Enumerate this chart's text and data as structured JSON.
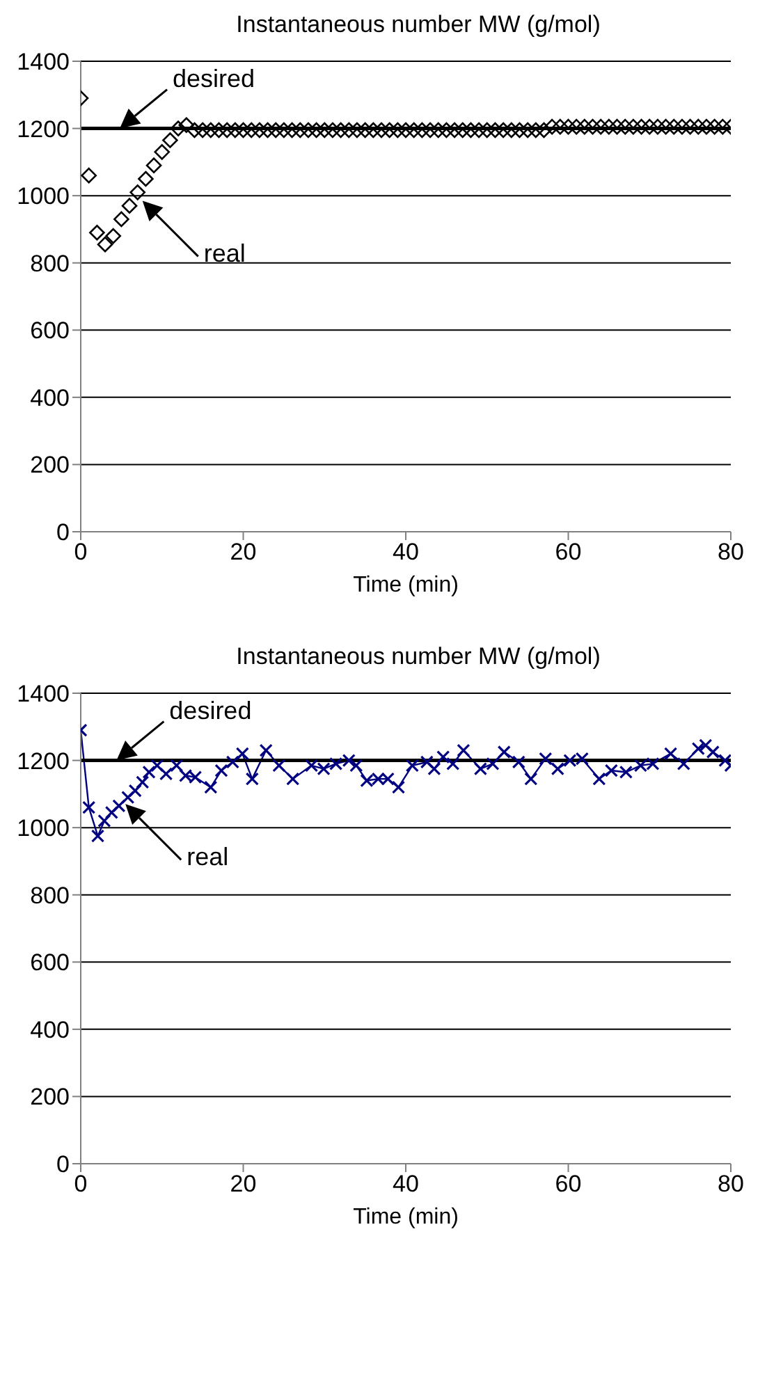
{
  "chart_data": [
    {
      "type": "scatter",
      "title": "Instantaneous number MW (g/mol)",
      "xlabel": "Time (min)",
      "xlim": [
        0,
        80
      ],
      "xticks": [
        0,
        20,
        40,
        60,
        80
      ],
      "ylim": [
        0,
        1400
      ],
      "yticks": [
        0,
        200,
        400,
        600,
        800,
        1000,
        1200,
        1400
      ],
      "grid": "y",
      "annotations": [
        {
          "text": "desired",
          "x": 4.8,
          "y": 1200
        },
        {
          "text": "real",
          "x": 7.6,
          "y": 985
        }
      ],
      "series": [
        {
          "color": "#000000",
          "marker": "diamond",
          "x": [
            0,
            1,
            2,
            3,
            4,
            5,
            6,
            7,
            8,
            9,
            10,
            11,
            12,
            13,
            14,
            15,
            16,
            17,
            18,
            19,
            20,
            21,
            22,
            23,
            24,
            25,
            26,
            27,
            28,
            29,
            30,
            31,
            32,
            33,
            34,
            35,
            36,
            37,
            38,
            39,
            40,
            41,
            42,
            43,
            44,
            45,
            46,
            47,
            48,
            49,
            50,
            51,
            52,
            53,
            54,
            55,
            56,
            57,
            58,
            59,
            60,
            61,
            62,
            63,
            64,
            65,
            66,
            67,
            68,
            69,
            70,
            71,
            72,
            73,
            74,
            75,
            76,
            77,
            78,
            79,
            80
          ],
          "values": [
            1290,
            1060,
            890,
            855,
            880,
            930,
            970,
            1010,
            1050,
            1090,
            1130,
            1165,
            1200,
            1210,
            1195,
            1195,
            1195,
            1195,
            1195,
            1195,
            1195,
            1195,
            1195,
            1195,
            1195,
            1195,
            1195,
            1195,
            1195,
            1195,
            1195,
            1195,
            1195,
            1195,
            1195,
            1195,
            1195,
            1195,
            1195,
            1195,
            1195,
            1195,
            1195,
            1195,
            1195,
            1195,
            1195,
            1195,
            1195,
            1195,
            1195,
            1195,
            1195,
            1195,
            1195,
            1195,
            1195,
            1195,
            1205,
            1205,
            1205,
            1205,
            1205,
            1205,
            1205,
            1205,
            1205,
            1205,
            1205,
            1205,
            1205,
            1205,
            1205,
            1205,
            1205,
            1205,
            1205,
            1205,
            1205,
            1205,
            1205
          ]
        },
        {
          "type": "line",
          "color": "#000000",
          "marker": "none",
          "x": [
            0,
            80
          ],
          "values": [
            1200,
            1200
          ]
        }
      ]
    },
    {
      "type": "line",
      "title": "Instantaneous number MW (g/mol)",
      "xlabel": "Time (min)",
      "xlim": [
        0,
        80
      ],
      "xticks": [
        0,
        20,
        40,
        60,
        80
      ],
      "ylim": [
        0,
        1400
      ],
      "yticks": [
        0,
        200,
        400,
        600,
        800,
        1000,
        1200,
        1400
      ],
      "grid": "y",
      "annotations": [
        {
          "text": "desired",
          "x": 4.4,
          "y": 1200
        },
        {
          "text": "real",
          "x": 5.5,
          "y": 1070
        }
      ],
      "series": [
        {
          "color": "#000080",
          "marker": "cross",
          "x": [
            0,
            1,
            2.1,
            2.9,
            3.8,
            4.7,
            5.8,
            6.7,
            7.6,
            8.4,
            9.4,
            10.5,
            11.8,
            12.9,
            14.1,
            16,
            17.3,
            18.7,
            19.9,
            21.1,
            22.8,
            24.4,
            26.1,
            28.4,
            29.9,
            31.4,
            33,
            33.9,
            35.2,
            36.6,
            37.8,
            39.1,
            40.8,
            42.6,
            43.5,
            44.6,
            45.8,
            47.1,
            49.2,
            50.7,
            52.1,
            53.9,
            55.4,
            57.2,
            58.7,
            60.2,
            61.7,
            63.8,
            65.3,
            67.1,
            68.9,
            70.4,
            72.6,
            74.2,
            76,
            76.9,
            77.8,
            79.3,
            80
          ],
          "values": [
            1290,
            1060,
            975,
            1020,
            1045,
            1065,
            1090,
            1110,
            1135,
            1165,
            1185,
            1160,
            1185,
            1155,
            1150,
            1120,
            1170,
            1195,
            1220,
            1145,
            1230,
            1185,
            1145,
            1185,
            1175,
            1190,
            1200,
            1185,
            1140,
            1145,
            1145,
            1120,
            1185,
            1195,
            1175,
            1210,
            1190,
            1230,
            1175,
            1190,
            1225,
            1195,
            1145,
            1205,
            1175,
            1200,
            1205,
            1145,
            1170,
            1165,
            1185,
            1190,
            1220,
            1190,
            1235,
            1245,
            1225,
            1200,
            1185
          ]
        },
        {
          "color": "#000000",
          "marker": "none",
          "x": [
            0,
            80
          ],
          "values": [
            1200,
            1200
          ]
        }
      ]
    }
  ]
}
